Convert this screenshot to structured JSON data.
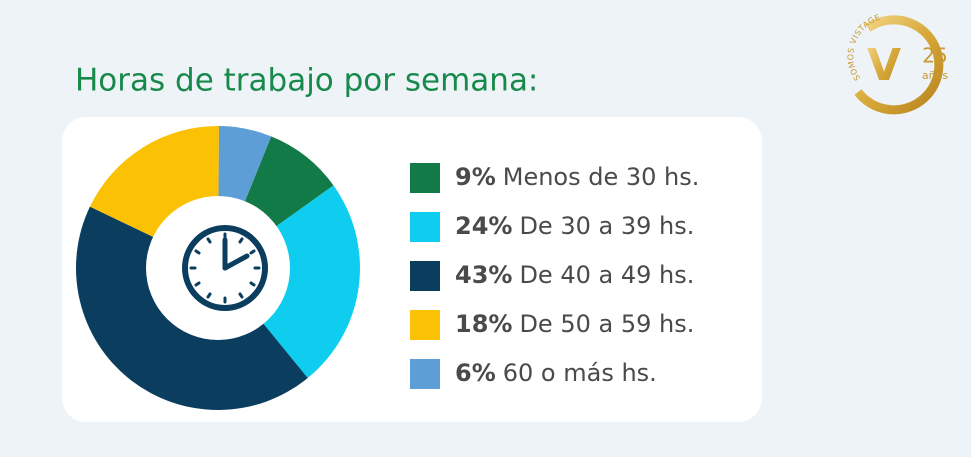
{
  "chart_data": {
    "type": "pie",
    "title": "Horas de trabajo por semana:",
    "categories": [
      "Menos de 30 hs.",
      "De 30 a 39 hs.",
      "De 40 a 49 hs.",
      "De 50 a 59 hs.",
      "60 o más hs."
    ],
    "values": [
      9,
      24,
      43,
      18,
      6
    ],
    "value_labels": [
      "9%",
      "24%",
      "43%",
      "18%",
      "6%"
    ],
    "colors": [
      "#127a47",
      "#0fcdee",
      "#0b3d5f",
      "#fbc105",
      "#5e9ed7"
    ]
  },
  "logo": {
    "arc_text": "SOMOS VISTAGE",
    "letter": "V",
    "number": "25",
    "word": "años"
  }
}
